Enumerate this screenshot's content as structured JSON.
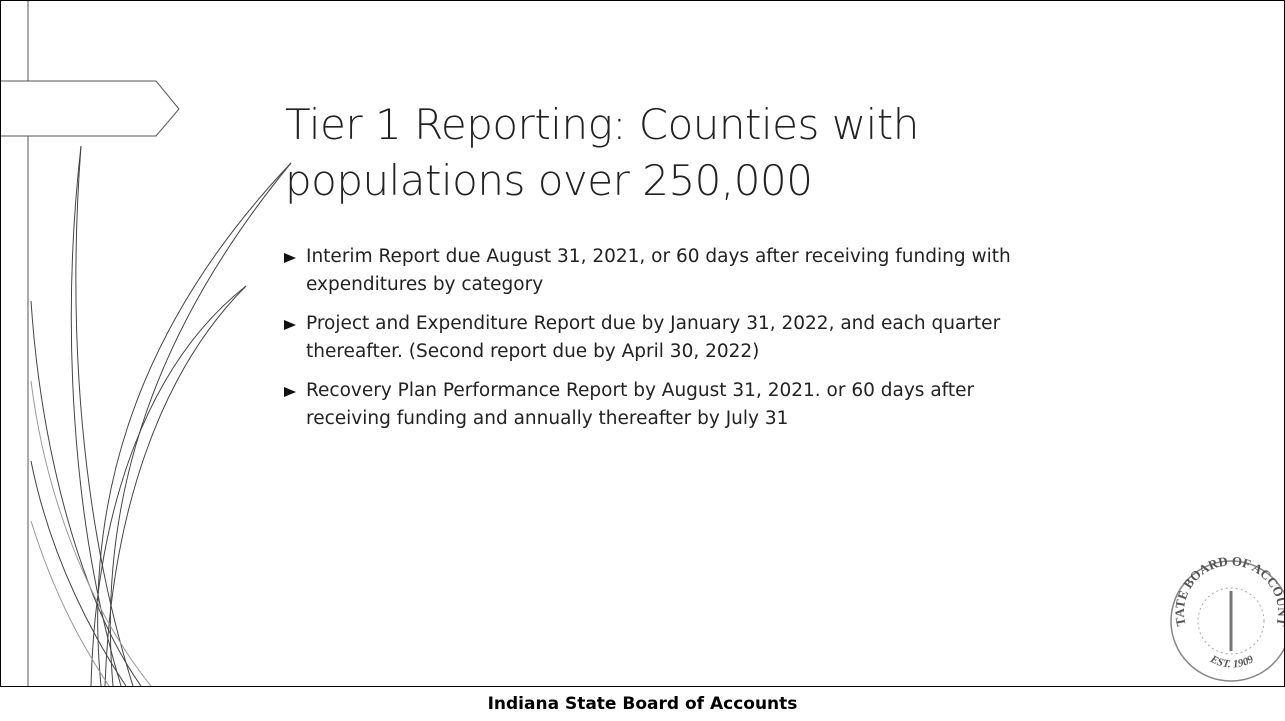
{
  "slide": {
    "title": "Tier 1  Reporting: Counties with populations over 250,000",
    "bullets": [
      "Interim Report due August 31, 2021, or 60 days after receiving funding with expenditures by category",
      "Project and Expenditure Report due by January 31, 2022, and each quarter thereafter. (Second report due by April 30, 2022)",
      "Recovery Plan Performance Report by August 31, 2021. or 60 days after receiving funding and annually thereafter by July 31"
    ],
    "seal": {
      "ring_text": "STATE BOARD OF ACCOUNTS",
      "year_text": "EST. 1909"
    }
  },
  "footer": {
    "text": "Indiana State Board of Accounts"
  }
}
